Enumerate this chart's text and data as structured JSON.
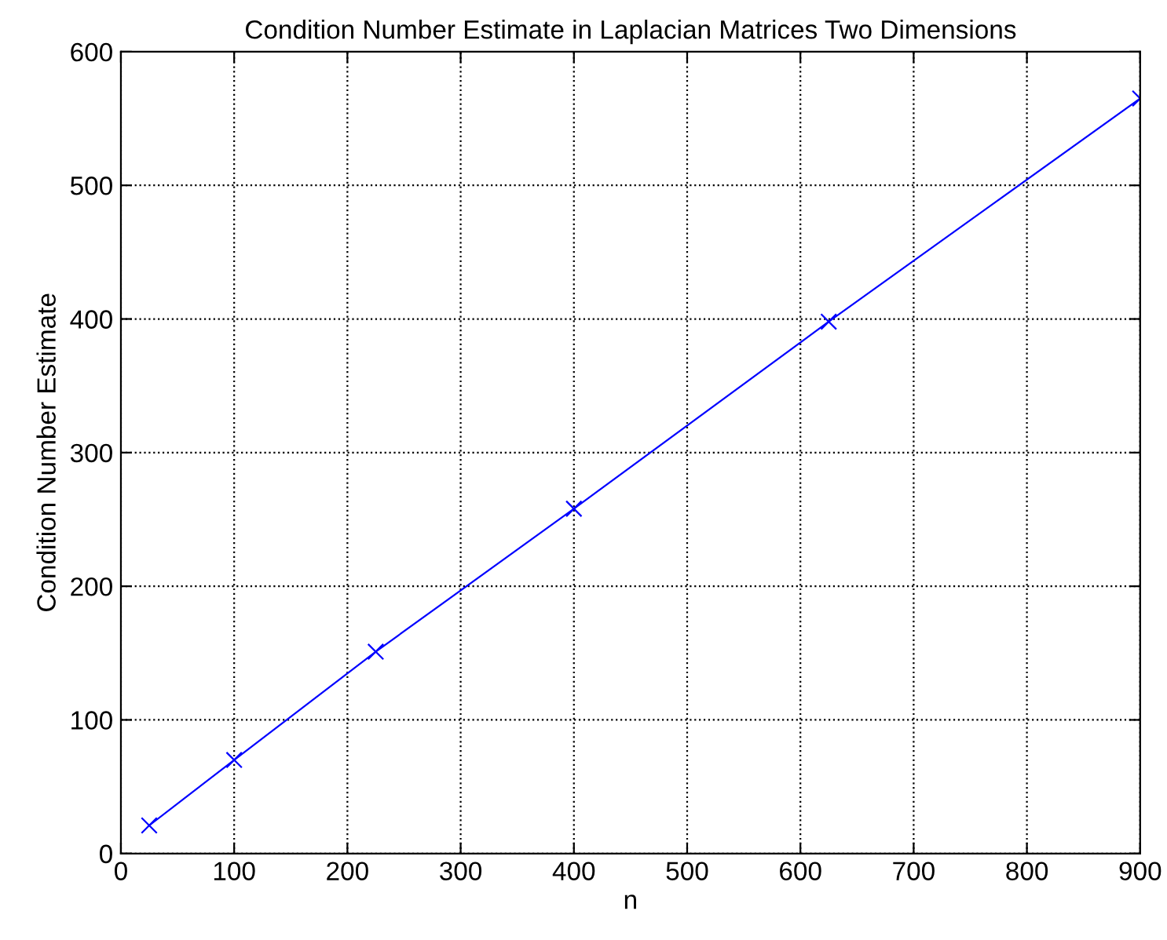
{
  "chart_data": {
    "type": "line",
    "title": "Condition Number Estimate in Laplacian Matrices Two Dimensions",
    "xlabel": "n",
    "ylabel": "Condition Number Estimate",
    "x": [
      25,
      100,
      225,
      400,
      625,
      900
    ],
    "series": [
      {
        "color": "#0000ff",
        "values": [
          21,
          70,
          151,
          258,
          398,
          565
        ]
      }
    ],
    "xlim": [
      0,
      900
    ],
    "xticks": [
      0,
      100,
      200,
      300,
      400,
      500,
      600,
      700,
      800,
      900
    ],
    "ylim": [
      0,
      600
    ],
    "yticks": [
      0,
      100,
      200,
      300,
      400,
      500,
      600
    ],
    "grid": true,
    "marker": "cross",
    "line_style": "solid"
  }
}
